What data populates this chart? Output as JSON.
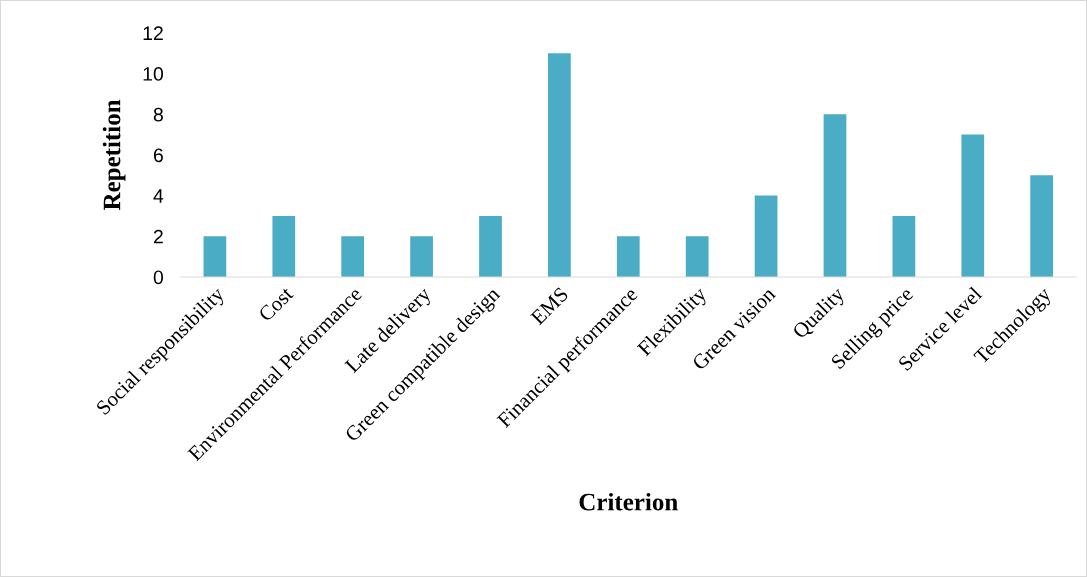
{
  "chart_data": {
    "type": "bar",
    "xlabel": "Criterion",
    "ylabel": "Repetition",
    "categories": [
      "Social responsibility",
      "Cost",
      "Environmental Performance",
      "Late delivery",
      "Green compatible design",
      "EMS",
      "Financial performance",
      "Flexibility",
      "Green vision",
      "Quality",
      "Selling price",
      "Service level",
      "Technology"
    ],
    "values": [
      2,
      3,
      2,
      2,
      3,
      11,
      2,
      2,
      4,
      8,
      3,
      7,
      5
    ],
    "color": "#4bacc6",
    "ylim": [
      0,
      12
    ],
    "yticks": [
      0,
      2,
      4,
      6,
      8,
      10,
      12
    ],
    "grid": false,
    "legend": false
  }
}
